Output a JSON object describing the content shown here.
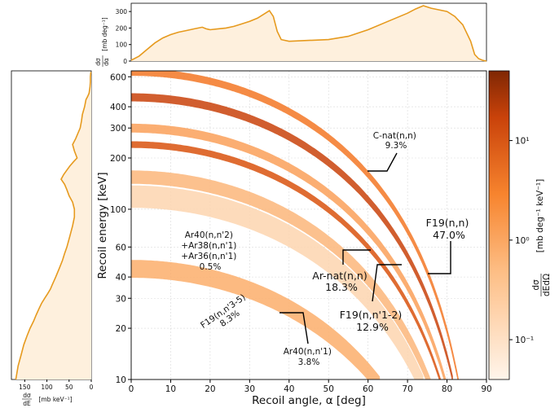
{
  "chart_data": [
    {
      "id": "main",
      "type": "heatmap",
      "xlabel": "Recoil angle, α [deg]",
      "ylabel": "Recoil energy [keV]",
      "xlim": [
        0,
        90
      ],
      "ylim": [
        10,
        650
      ],
      "yscale": "log",
      "xticks": [
        "0",
        "10",
        "20",
        "30",
        "40",
        "50",
        "60",
        "70",
        "80",
        "90"
      ],
      "yticks": [
        "10",
        "20",
        "30",
        "40",
        "60",
        "100",
        "200",
        "300",
        "400",
        "600"
      ],
      "grid": true,
      "colors": {
        "light": "#fde9d2",
        "mid": "#f7944a",
        "dark": "#7f2704",
        "line": "#e69a1e",
        "fill": "#fef0dd"
      },
      "bands": [
        {
          "name": "C-nat(n,n)",
          "e0": 640,
          "width": 0.05,
          "intensity": 0.55
        },
        {
          "name": "F19(n,n)",
          "e0": 455,
          "width": 0.055,
          "intensity": 0.85
        },
        {
          "name": "Ar-nat(n,n)",
          "e0": 240,
          "width": 0.045,
          "intensity": 0.75
        },
        {
          "name": "F19(n,n'1-2)",
          "e0": 300,
          "width": 0.06,
          "intensity": 0.4
        },
        {
          "name": "F19(n,n'3-5)",
          "e0": 155,
          "width": 0.09,
          "intensity": 0.3
        },
        {
          "name": "Ar40(n,n'2)",
          "e0": 120,
          "width": 0.15,
          "intensity": 0.12
        },
        {
          "name": "Ar40(n,n'1)",
          "e0": 45,
          "width": 0.12,
          "intensity": 0.35
        }
      ],
      "annotations": [
        {
          "key": "cnat",
          "lines": [
            "C-nat(n,n)",
            "9.3%"
          ]
        },
        {
          "key": "f19nn",
          "lines": [
            "F19(n,n)",
            "47.0%"
          ]
        },
        {
          "key": "arnat",
          "lines": [
            "Ar-nat(n,n)",
            "18.3%"
          ]
        },
        {
          "key": "f19n12",
          "lines": [
            "F19(n,n'1-2)",
            "12.9%"
          ]
        },
        {
          "key": "f19n35",
          "lines": [
            "F19(n,n'3-5)",
            "8.3%"
          ]
        },
        {
          "key": "ar40n2",
          "lines": [
            "Ar40(n,n'2)",
            "+Ar38(n,n'1)",
            "+Ar36(n,n'1)",
            "0.5%"
          ]
        },
        {
          "key": "ar40n1",
          "lines": [
            "Ar40(n,n'1)",
            "3.8%"
          ]
        }
      ]
    },
    {
      "id": "colorbar",
      "type": "colorbar",
      "scale": "log",
      "ticks": [
        "10¹",
        "10⁰",
        "10⁻¹"
      ],
      "label_left": "dσ",
      "label_left_den": "dEdΩ",
      "label_units": "[mb deg⁻¹ keV⁻¹]"
    },
    {
      "id": "top_marginal",
      "type": "area",
      "xlim": [
        0,
        90
      ],
      "ylim": [
        0,
        350
      ],
      "yticks": [
        "0",
        "100",
        "200",
        "300"
      ],
      "ylabel_num": "dσ",
      "ylabel_den": "dα",
      "ylabel_units": "[mb deg⁻¹]",
      "x": [
        0,
        2,
        4,
        6,
        8,
        10,
        12,
        14,
        16,
        18,
        19,
        20,
        22,
        24,
        26,
        28,
        30,
        32,
        34,
        35,
        36,
        37,
        38,
        40,
        45,
        50,
        55,
        60,
        65,
        70,
        72,
        74,
        76,
        78,
        80,
        82,
        84,
        86,
        87,
        88,
        89,
        90
      ],
      "y": [
        5,
        30,
        70,
        110,
        140,
        160,
        175,
        185,
        195,
        205,
        195,
        190,
        195,
        200,
        210,
        225,
        240,
        260,
        290,
        305,
        270,
        180,
        130,
        120,
        125,
        130,
        150,
        190,
        240,
        290,
        315,
        335,
        320,
        310,
        300,
        270,
        220,
        120,
        40,
        15,
        5,
        0
      ]
    },
    {
      "id": "left_marginal",
      "type": "area",
      "orientation": "horizontal",
      "xlim": [
        0,
        180
      ],
      "xticks": [
        "150",
        "100",
        "50",
        "0"
      ],
      "xlabel_num": "dσ",
      "xlabel_den": "dE",
      "xlabel_units": "[mb keV⁻¹]",
      "energy": [
        10,
        12,
        14,
        16,
        18,
        20,
        22,
        24,
        26,
        28,
        30,
        32,
        34,
        36,
        38,
        40,
        45,
        50,
        55,
        60,
        70,
        80,
        90,
        100,
        110,
        120,
        130,
        140,
        150,
        160,
        170,
        180,
        190,
        200,
        220,
        240,
        260,
        280,
        300,
        330,
        360,
        400,
        440,
        460,
        480,
        520,
        560,
        600,
        640
      ],
      "value": [
        170,
        165,
        158,
        152,
        145,
        138,
        130,
        124,
        118,
        112,
        105,
        98,
        92,
        88,
        84,
        80,
        72,
        65,
        60,
        55,
        48,
        42,
        38,
        38,
        42,
        50,
        55,
        60,
        68,
        62,
        55,
        48,
        40,
        32,
        38,
        42,
        35,
        30,
        25,
        22,
        20,
        15,
        12,
        8,
        5,
        3,
        2,
        2,
        1
      ]
    }
  ]
}
